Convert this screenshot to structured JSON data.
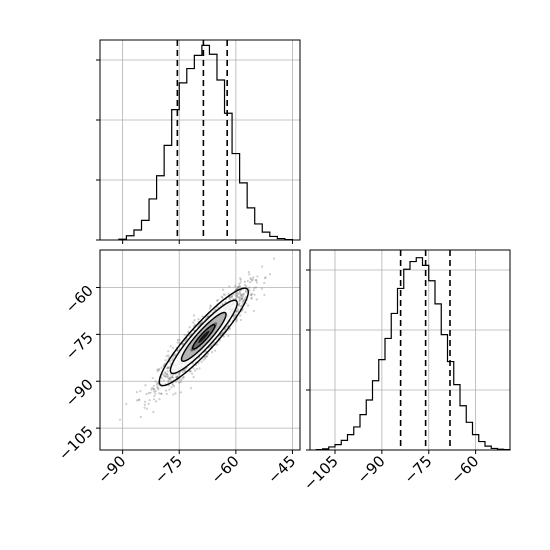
{
  "chart_data": [
    {
      "type": "histogram",
      "panel": "top-left",
      "title": "",
      "xlabel": "",
      "ylabel": "",
      "xlim": [
        -96,
        -43
      ],
      "grid": true,
      "bin_edges": [
        -91,
        -89,
        -87,
        -85,
        -83,
        -81,
        -79,
        -77,
        -75,
        -73,
        -71,
        -69,
        -67,
        -65,
        -63,
        -61,
        -59,
        -57,
        -55,
        -53,
        -51,
        -49,
        -47,
        -45
      ],
      "counts": [
        2,
        12,
        28,
        55,
        115,
        180,
        265,
        365,
        440,
        480,
        517,
        545,
        520,
        448,
        355,
        242,
        160,
        90,
        45,
        22,
        10,
        4,
        1
      ],
      "quantiles": [
        -75.5,
        -68.6,
        -62.3
      ],
      "ylim": [
        0,
        560
      ]
    },
    {
      "type": "scatter",
      "panel": "bottom-left",
      "title": "",
      "xlabel": "",
      "ylabel": "",
      "xlim": [
        -96,
        -43
      ],
      "ylim": [
        -112,
        -48
      ],
      "xticks": [
        "−90",
        "−75",
        "−60",
        "−45"
      ],
      "yticks": [
        "−60",
        "−75",
        "−90",
        "−105"
      ],
      "xtick_values": [
        -90,
        -75,
        -60,
        -45
      ],
      "ytick_values": [
        -60,
        -75,
        -90,
        -105
      ],
      "grid": true,
      "mean": [
        -68.5,
        -75.8
      ],
      "std": [
        5.9,
        7.8
      ],
      "correlation": 0.92,
      "contour_levels": [
        "0.5-sigma",
        "1-sigma",
        "1.5-sigma",
        "2-sigma"
      ]
    },
    {
      "type": "histogram",
      "panel": "bottom-right",
      "title": "",
      "xlabel": "",
      "ylabel": "",
      "xlim": [
        -113,
        -49
      ],
      "xticks": [
        "−105",
        "−90",
        "−75",
        "−60"
      ],
      "xtick_values": [
        -105,
        -90,
        -75,
        -60
      ],
      "grid": true,
      "bin_edges": [
        -111,
        -109,
        -107,
        -105,
        -103,
        -101,
        -99,
        -97,
        -95,
        -93,
        -91,
        -89,
        -87,
        -85,
        -83,
        -81,
        -79,
        -77,
        -75,
        -73,
        -71,
        -69,
        -67,
        -65,
        -63,
        -61,
        -59,
        -57,
        -55,
        -53,
        -51,
        -49
      ],
      "counts": [
        1,
        3,
        8,
        14,
        25,
        40,
        60,
        92,
        130,
        180,
        235,
        290,
        355,
        420,
        470,
        490,
        500,
        480,
        440,
        380,
        300,
        230,
        170,
        115,
        72,
        40,
        22,
        10,
        4,
        2,
        1
      ],
      "quantiles": [
        -84.0,
        -76.0,
        -68.2
      ],
      "ylim": [
        0,
        520
      ]
    }
  ]
}
